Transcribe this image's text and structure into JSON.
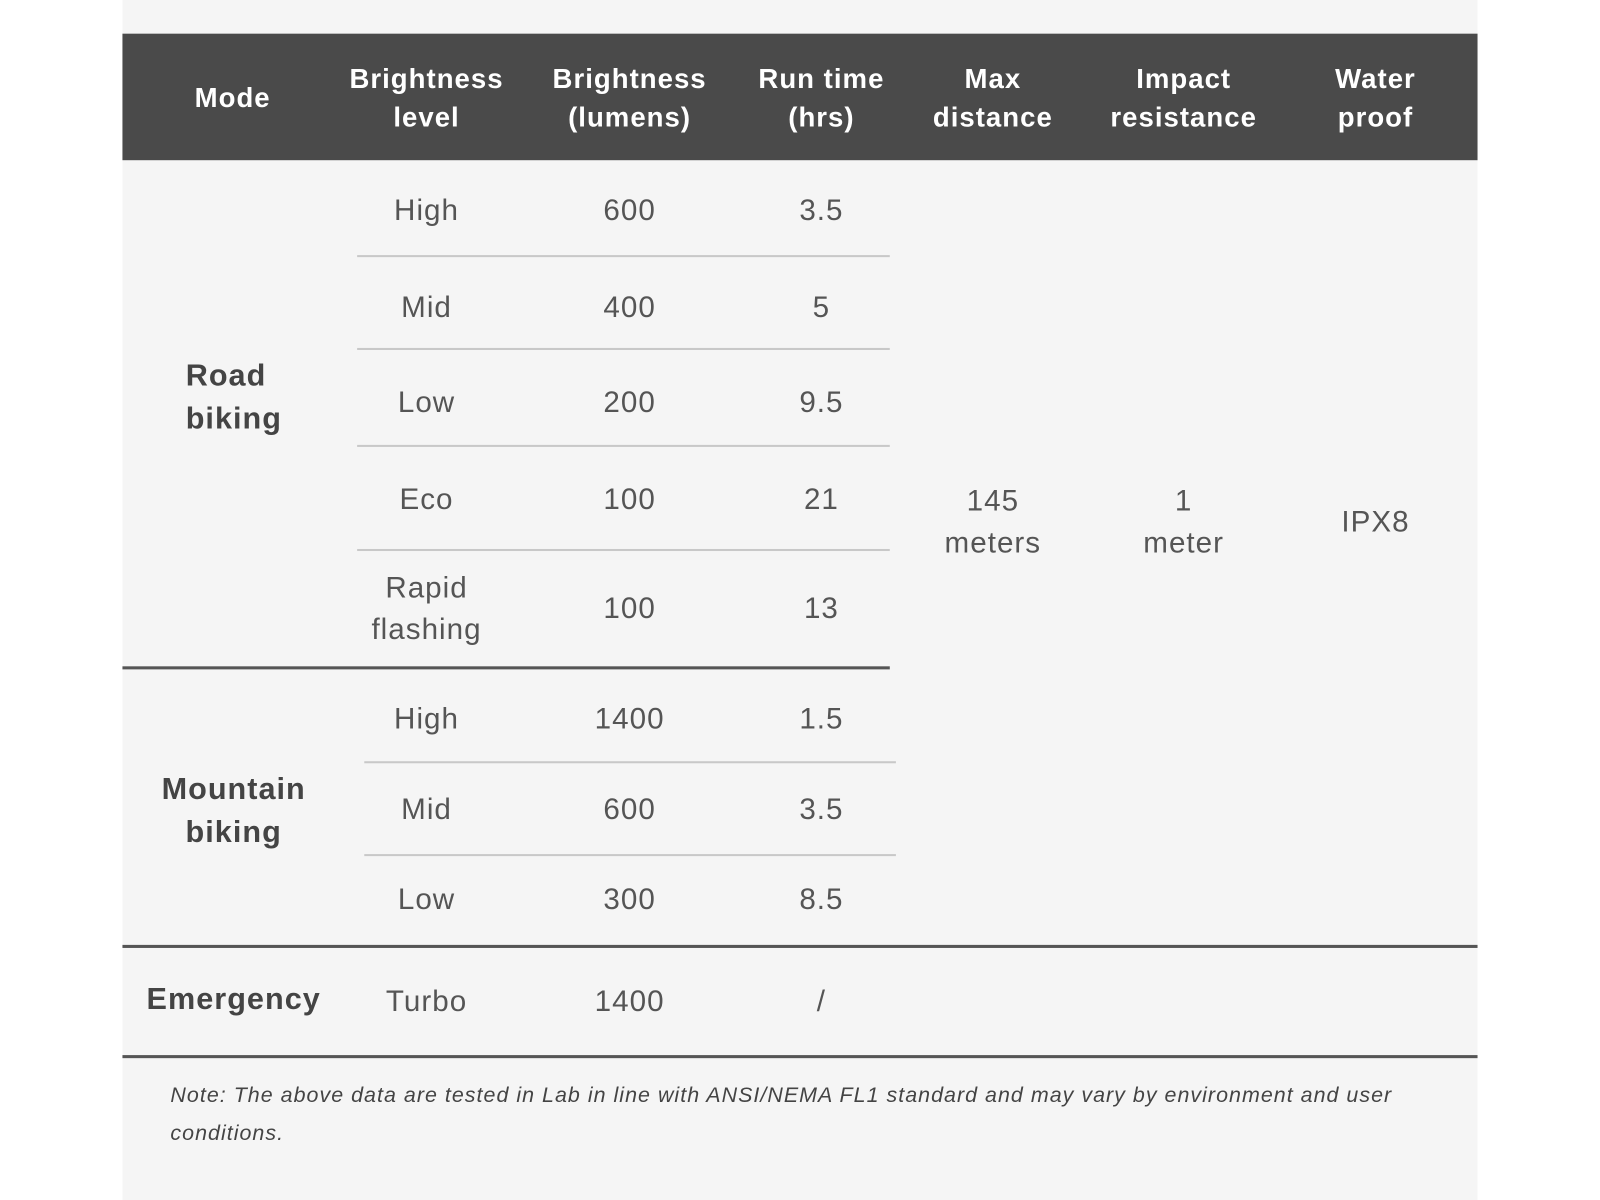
{
  "header": [
    "Mode",
    "Brightness level",
    "Brightness (lumens)",
    "Run time (hrs)",
    "Max distance",
    "Impact resistance",
    "Water proof"
  ],
  "groups": [
    {
      "mode": "Road biking",
      "rows": [
        [
          "High",
          "600",
          "3.5"
        ],
        [
          "Mid",
          "400",
          "5"
        ],
        [
          "Low",
          "200",
          "9.5"
        ],
        [
          "Eco",
          "100",
          "21"
        ],
        [
          "Rapid flashing",
          "100",
          "13"
        ]
      ]
    },
    {
      "mode": "Mountain biking",
      "rows": [
        [
          "High",
          "1400",
          "1.5"
        ],
        [
          "Mid",
          "600",
          "3.5"
        ],
        [
          "Low",
          "300",
          "8.5"
        ]
      ]
    },
    {
      "mode": "Emergency",
      "rows": [
        [
          "Turbo",
          "1400",
          "/"
        ]
      ]
    }
  ],
  "shared": [
    "145 meters",
    "1 meter",
    "IPX8"
  ],
  "note": "Note: The above data are tested in Lab in line with ANSI/NEMA FL1 standard and may vary by environment and user conditions."
}
